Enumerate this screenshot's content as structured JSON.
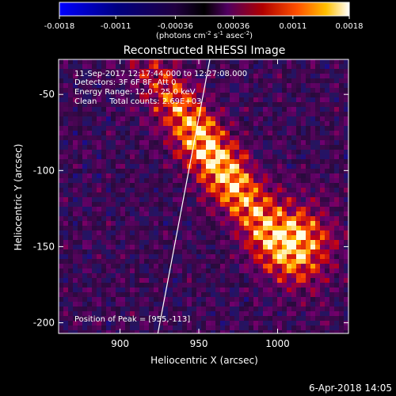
{
  "colorbar": {
    "ticks": [
      -0.0018,
      -0.0011,
      -0.00036,
      0.00036,
      0.0011,
      0.0018
    ],
    "tick_labels": [
      "-0.0018",
      "-0.0011",
      "-0.00036",
      "0.00036",
      "0.0011",
      "0.0018"
    ],
    "range": [
      -0.0018,
      0.0018
    ],
    "units_main": "(photons cm",
    "units_exp1": "-2",
    "units_s": " s",
    "units_exp2": "-1",
    "units_asec": " asec",
    "units_exp3": "-2",
    "units_close": ")",
    "colormap": "black-purple-red-orange-yellow-white with blue negatives"
  },
  "chart_data": {
    "type": "heatmap",
    "title": "Reconstructed RHESSI Image",
    "xlabel": "Heliocentric X (arcsec)",
    "ylabel": "Heliocentric Y (arcsec)",
    "xlim": [
      861,
      1045
    ],
    "ylim": [
      -207,
      -27
    ],
    "xticks": [
      900,
      950,
      1000
    ],
    "xtick_labels": [
      "900",
      "950",
      "1000"
    ],
    "yticks": [
      -50,
      -100,
      -150,
      -200
    ],
    "ytick_labels": [
      "-50",
      "-100",
      "-150",
      "-200"
    ],
    "limb_line": {
      "x": [
        924,
        957
      ],
      "y": [
        -207,
        -27
      ]
    },
    "sources": [
      {
        "x": 958,
        "y": -90,
        "peak": 0.0018,
        "description": "elongated loop"
      },
      {
        "x": 1010,
        "y": -145,
        "peak": 0.0016,
        "description": "secondary source"
      }
    ],
    "peak_position": [
      955,
      -113
    ]
  },
  "annotations": {
    "time_range": "11-Sep-2017 12:17:44.000 to 12:27:08.000",
    "detectors": "Detectors: 3F 6F 8F, Att 0",
    "energy": "Energy Range: 12.0 - 25.0 keV",
    "clean": "Clean     Total counts: 2.69E+03",
    "peak": "Position of Peak = [955,-113]"
  },
  "footer": {
    "date": "6-Apr-2018 14:05"
  }
}
